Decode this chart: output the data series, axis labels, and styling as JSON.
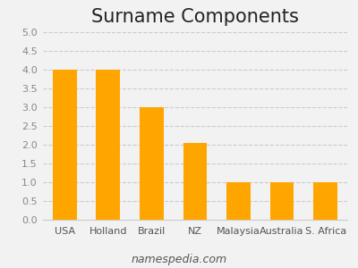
{
  "title": "Surname Components",
  "categories": [
    "USA",
    "Holland",
    "Brazil",
    "NZ",
    "Malaysia",
    "Australia",
    "S. Africa"
  ],
  "values": [
    4,
    4,
    3,
    2.05,
    1,
    1,
    1
  ],
  "bar_color": "#FFA500",
  "ylim": [
    0,
    5
  ],
  "yticks": [
    0,
    0.5,
    1,
    1.5,
    2,
    2.5,
    3,
    3.5,
    4,
    4.5,
    5
  ],
  "grid_color": "#cccccc",
  "background_color": "#f2f2f2",
  "title_fontsize": 15,
  "tick_fontsize": 8,
  "footer_text": "namespedia.com",
  "footer_fontsize": 9,
  "bar_width": 0.55
}
